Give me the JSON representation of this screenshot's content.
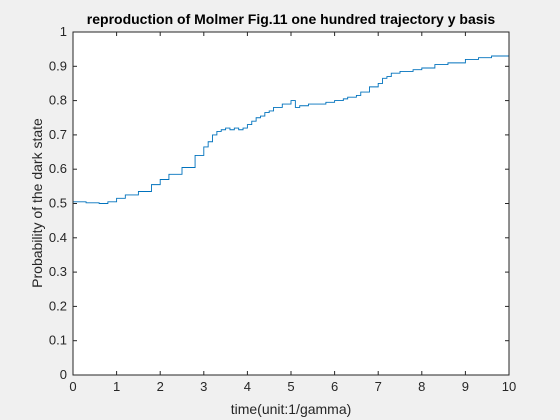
{
  "chart_data": {
    "type": "line",
    "title": "reproduction of Molmer Fig.11 one hundred trajectory y basis",
    "xlabel": "time(unit:1/gamma)",
    "ylabel": "Probability of the dark state",
    "xlim": [
      0,
      10
    ],
    "ylim": [
      0,
      1
    ],
    "xticks": [
      "0",
      "1",
      "2",
      "3",
      "4",
      "5",
      "6",
      "7",
      "8",
      "9",
      "10"
    ],
    "yticks": [
      "0",
      "0.1",
      "0.2",
      "0.3",
      "0.4",
      "0.5",
      "0.6",
      "0.7",
      "0.8",
      "0.9",
      "1"
    ],
    "grid": false,
    "line_color": "#0072bd",
    "series": [
      {
        "x": [
          0,
          0.3,
          0.6,
          0.8,
          1.0,
          1.2,
          1.5,
          1.8,
          2.0,
          2.2,
          2.5,
          2.8,
          3.0,
          3.1,
          3.2,
          3.3,
          3.4,
          3.5,
          3.6,
          3.7,
          3.8,
          3.9,
          4.0,
          4.1,
          4.2,
          4.3,
          4.4,
          4.5,
          4.6,
          4.8,
          5.0,
          5.1,
          5.2,
          5.4,
          5.6,
          5.8,
          6.0,
          6.2,
          6.3,
          6.5,
          6.6,
          6.8,
          7.0,
          7.1,
          7.2,
          7.3,
          7.5,
          7.8,
          8.0,
          8.3,
          8.6,
          9.0,
          9.3,
          9.6,
          10.0
        ],
        "y": [
          0.505,
          0.502,
          0.5,
          0.505,
          0.515,
          0.525,
          0.535,
          0.555,
          0.57,
          0.585,
          0.605,
          0.64,
          0.665,
          0.68,
          0.7,
          0.71,
          0.715,
          0.72,
          0.715,
          0.72,
          0.715,
          0.72,
          0.73,
          0.74,
          0.75,
          0.755,
          0.765,
          0.77,
          0.78,
          0.79,
          0.8,
          0.78,
          0.785,
          0.79,
          0.79,
          0.795,
          0.8,
          0.805,
          0.81,
          0.815,
          0.825,
          0.84,
          0.85,
          0.865,
          0.87,
          0.88,
          0.885,
          0.89,
          0.895,
          0.905,
          0.91,
          0.92,
          0.925,
          0.93,
          0.935
        ]
      }
    ]
  }
}
